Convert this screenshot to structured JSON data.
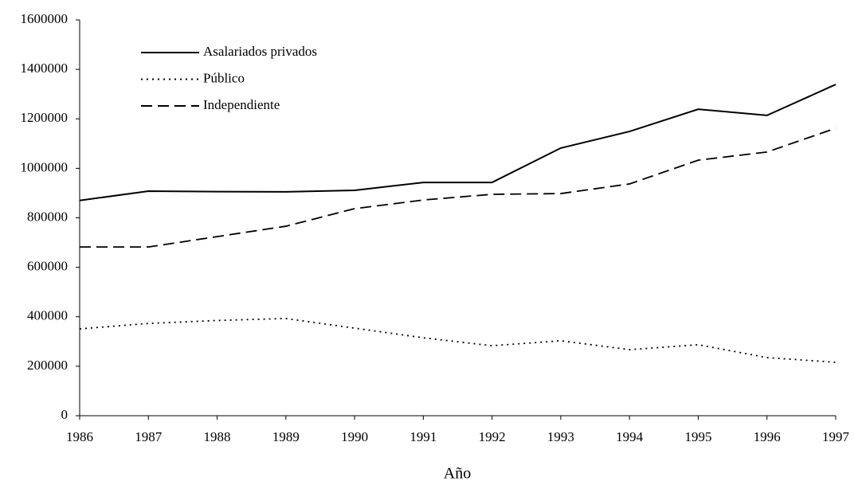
{
  "chart_data": {
    "type": "line",
    "x_label": "Año",
    "x": [
      1986,
      1987,
      1988,
      1989,
      1990,
      1991,
      1992,
      1993,
      1994,
      1995,
      1996,
      1997
    ],
    "series": [
      {
        "name": "Asalariados privados",
        "color": "#000000",
        "style": "solid",
        "values": [
          870000,
          908000,
          906000,
          905000,
          911000,
          943000,
          943000,
          1082000,
          1149000,
          1239000,
          1214000,
          1339000
        ]
      },
      {
        "name": "Público",
        "color": "#000000",
        "style": "dotted",
        "values": [
          351000,
          373000,
          385000,
          393000,
          354000,
          315000,
          283000,
          303000,
          267000,
          287000,
          235000,
          216000
        ]
      },
      {
        "name": "Independiente",
        "color": "#000000",
        "style": "dashed",
        "values": [
          682000,
          682000,
          724000,
          766000,
          837000,
          872000,
          895000,
          898000,
          937000,
          1033000,
          1066000,
          1162000
        ]
      }
    ],
    "xlim": [
      1986,
      1997
    ],
    "xticks": [
      1986,
      1987,
      1988,
      1989,
      1990,
      1991,
      1992,
      1993,
      1994,
      1995,
      1996,
      1997
    ],
    "ylim": [
      0,
      1600000
    ],
    "yticks": [
      0,
      200000,
      400000,
      600000,
      800000,
      1000000,
      1200000,
      1400000,
      1600000
    ],
    "grid": false,
    "legend": "upper left"
  }
}
